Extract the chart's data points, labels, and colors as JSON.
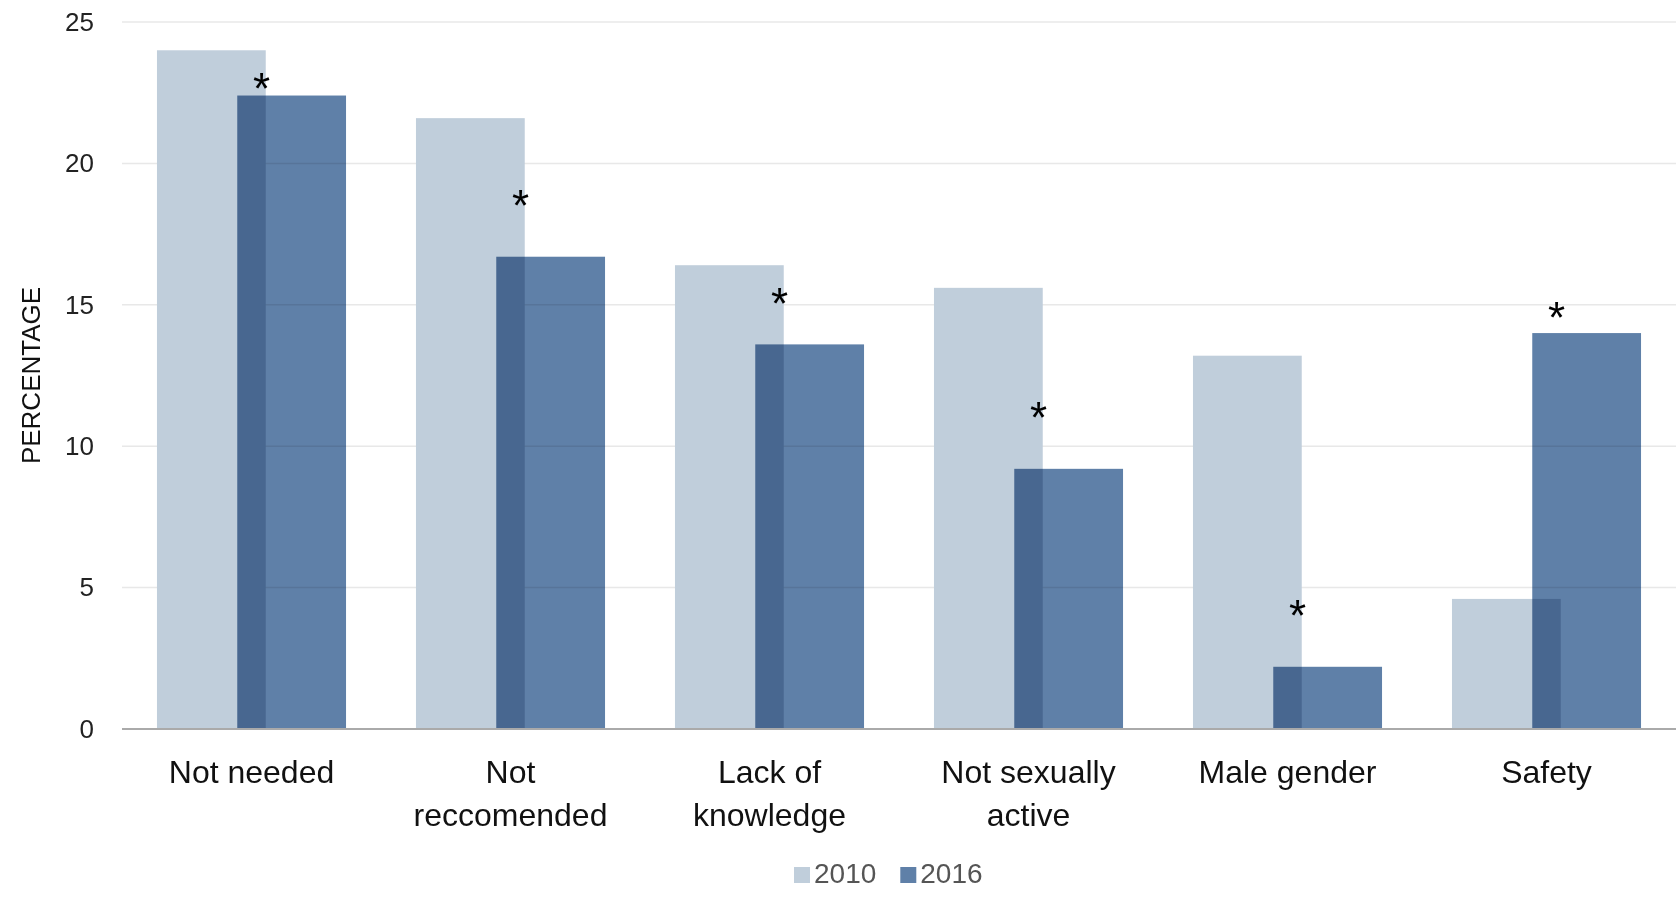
{
  "chart_data": {
    "type": "bar",
    "ylabel": "PERCENTAGE",
    "categories": [
      "Not needed",
      "Not reccomended",
      "Lack of knowledge",
      "Not sexually active",
      "Male gender",
      "Safety"
    ],
    "series": [
      {
        "name": "2010",
        "color": "#c0cedb",
        "values": [
          24.0,
          21.6,
          16.4,
          15.6,
          13.2,
          4.6
        ]
      },
      {
        "name": "2016",
        "color": "#5f80a8",
        "values": [
          22.4,
          16.7,
          13.6,
          9.2,
          2.2,
          14.0
        ]
      }
    ],
    "ylim": [
      0,
      25
    ],
    "yticks": [
      0,
      5,
      10,
      15,
      20,
      25
    ],
    "grid": "y",
    "legend": "bottom",
    "annotations": [
      "*",
      "*",
      "*",
      "*",
      "*",
      "*"
    ]
  }
}
